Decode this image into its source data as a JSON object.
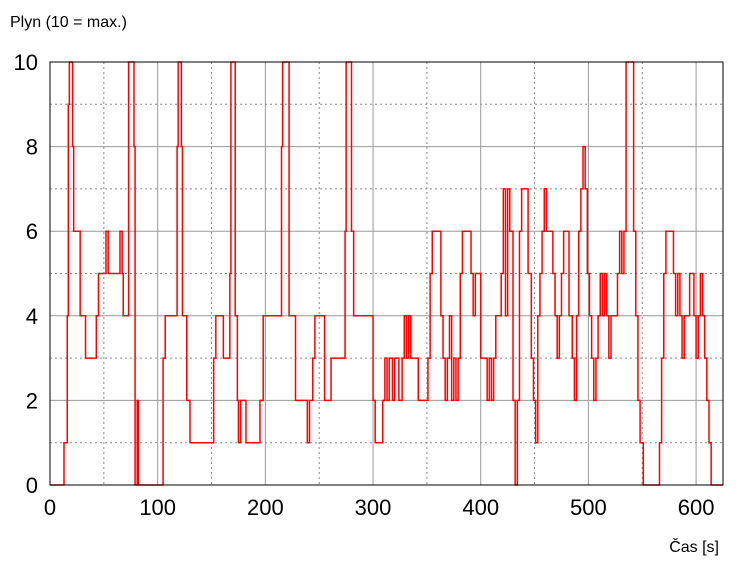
{
  "chart_data": {
    "type": "line",
    "title": "",
    "ylabel": "Plyn (10 = max.)",
    "xlabel": "Čas [s]",
    "xlim": [
      0,
      625
    ],
    "ylim": [
      0,
      10
    ],
    "x_ticks": [
      0,
      100,
      200,
      300,
      400,
      500,
      600
    ],
    "x_minor_grid": [
      50,
      150,
      250,
      350,
      450,
      550
    ],
    "y_ticks": [
      0,
      2,
      4,
      6,
      8,
      10
    ],
    "y_minor_grid": [
      1,
      3,
      5,
      7,
      9
    ],
    "grid": true,
    "line_color": "#ff0000",
    "series": [
      {
        "name": "",
        "step": true,
        "points": [
          [
            0,
            0
          ],
          [
            12,
            0
          ],
          [
            13,
            1
          ],
          [
            15,
            1
          ],
          [
            16,
            4
          ],
          [
            17,
            9
          ],
          [
            18,
            10
          ],
          [
            20,
            10
          ],
          [
            21,
            8
          ],
          [
            22,
            6
          ],
          [
            26,
            6
          ],
          [
            28,
            4
          ],
          [
            31,
            4
          ],
          [
            33,
            3
          ],
          [
            41,
            3
          ],
          [
            43,
            4
          ],
          [
            45,
            5
          ],
          [
            51,
            5
          ],
          [
            52,
            6
          ],
          [
            54,
            5
          ],
          [
            64,
            5
          ],
          [
            65,
            6
          ],
          [
            67,
            5
          ],
          [
            68,
            4
          ],
          [
            71,
            4
          ],
          [
            73,
            10
          ],
          [
            77,
            10
          ],
          [
            78,
            8
          ],
          [
            79,
            0
          ],
          [
            81,
            2
          ],
          [
            82,
            0
          ],
          [
            84,
            0
          ],
          [
            104,
            0
          ],
          [
            105,
            3
          ],
          [
            107,
            4
          ],
          [
            117,
            4
          ],
          [
            118,
            8
          ],
          [
            119,
            10
          ],
          [
            121,
            10
          ],
          [
            122,
            8
          ],
          [
            123,
            4
          ],
          [
            126,
            4
          ],
          [
            127,
            2
          ],
          [
            130,
            1
          ],
          [
            150,
            1
          ],
          [
            152,
            3
          ],
          [
            154,
            4
          ],
          [
            159,
            4
          ],
          [
            161,
            3
          ],
          [
            165,
            3
          ],
          [
            167,
            5
          ],
          [
            168,
            10
          ],
          [
            171,
            10
          ],
          [
            172,
            4
          ],
          [
            174,
            2
          ],
          [
            175,
            1
          ],
          [
            177,
            2
          ],
          [
            180,
            2
          ],
          [
            182,
            1
          ],
          [
            193,
            1
          ],
          [
            195,
            2
          ],
          [
            198,
            4
          ],
          [
            213,
            4
          ],
          [
            215,
            8
          ],
          [
            216,
            10
          ],
          [
            220,
            10
          ],
          [
            222,
            4
          ],
          [
            226,
            4
          ],
          [
            228,
            2
          ],
          [
            237,
            2
          ],
          [
            239,
            1
          ],
          [
            241,
            2
          ],
          [
            244,
            3
          ],
          [
            246,
            4
          ],
          [
            253,
            4
          ],
          [
            255,
            2
          ],
          [
            259,
            2
          ],
          [
            261,
            3
          ],
          [
            273,
            3
          ],
          [
            274,
            6
          ],
          [
            275,
            10
          ],
          [
            278,
            10
          ],
          [
            280,
            6
          ],
          [
            282,
            4
          ],
          [
            299,
            4
          ],
          [
            300,
            2
          ],
          [
            302,
            1
          ],
          [
            307,
            1
          ],
          [
            309,
            2
          ],
          [
            311,
            3
          ],
          [
            313,
            2
          ],
          [
            315,
            3
          ],
          [
            318,
            2
          ],
          [
            320,
            3
          ],
          [
            324,
            2
          ],
          [
            327,
            3
          ],
          [
            329,
            4
          ],
          [
            331,
            3
          ],
          [
            333,
            4
          ],
          [
            335,
            3
          ],
          [
            339,
            3
          ],
          [
            342,
            2
          ],
          [
            349,
            2
          ],
          [
            351,
            3
          ],
          [
            353,
            5
          ],
          [
            355,
            6
          ],
          [
            361,
            6
          ],
          [
            363,
            4
          ],
          [
            365,
            3
          ],
          [
            367,
            2
          ],
          [
            369,
            3
          ],
          [
            371,
            4
          ],
          [
            373,
            2
          ],
          [
            375,
            3
          ],
          [
            377,
            2
          ],
          [
            379,
            3
          ],
          [
            381,
            5
          ],
          [
            383,
            6
          ],
          [
            389,
            6
          ],
          [
            391,
            5
          ],
          [
            393,
            4
          ],
          [
            395,
            5
          ],
          [
            398,
            5
          ],
          [
            400,
            3
          ],
          [
            404,
            3
          ],
          [
            406,
            2
          ],
          [
            408,
            3
          ],
          [
            410,
            2
          ],
          [
            412,
            3
          ],
          [
            414,
            4
          ],
          [
            417,
            4
          ],
          [
            419,
            5
          ],
          [
            421,
            7
          ],
          [
            423,
            4
          ],
          [
            425,
            7
          ],
          [
            427,
            6
          ],
          [
            430,
            2
          ],
          [
            432,
            0
          ],
          [
            434,
            2
          ],
          [
            436,
            6
          ],
          [
            438,
            7
          ],
          [
            442,
            7
          ],
          [
            444,
            5
          ],
          [
            447,
            3
          ],
          [
            449,
            2
          ],
          [
            451,
            1
          ],
          [
            453,
            4
          ],
          [
            455,
            5
          ],
          [
            457,
            6
          ],
          [
            459,
            7
          ],
          [
            461,
            6
          ],
          [
            465,
            6
          ],
          [
            467,
            5
          ],
          [
            469,
            4
          ],
          [
            471,
            3
          ],
          [
            473,
            4
          ],
          [
            475,
            5
          ],
          [
            477,
            6
          ],
          [
            480,
            6
          ],
          [
            482,
            4
          ],
          [
            485,
            3
          ],
          [
            487,
            2
          ],
          [
            489,
            4
          ],
          [
            491,
            6
          ],
          [
            493,
            7
          ],
          [
            495,
            8
          ],
          [
            497,
            7
          ],
          [
            499,
            5
          ],
          [
            501,
            4
          ],
          [
            503,
            3
          ],
          [
            505,
            2
          ],
          [
            507,
            3
          ],
          [
            509,
            4
          ],
          [
            511,
            5
          ],
          [
            513,
            4
          ],
          [
            515,
            5
          ],
          [
            517,
            4
          ],
          [
            519,
            3
          ],
          [
            521,
            4
          ],
          [
            525,
            4
          ],
          [
            527,
            5
          ],
          [
            529,
            6
          ],
          [
            531,
            5
          ],
          [
            533,
            6
          ],
          [
            535,
            10
          ],
          [
            540,
            10
          ],
          [
            542,
            6
          ],
          [
            544,
            4
          ],
          [
            546,
            2
          ],
          [
            548,
            1
          ],
          [
            551,
            0
          ],
          [
            564,
            0
          ],
          [
            566,
            1
          ],
          [
            568,
            3
          ],
          [
            570,
            5
          ],
          [
            572,
            6
          ],
          [
            577,
            6
          ],
          [
            579,
            5
          ],
          [
            581,
            4
          ],
          [
            583,
            5
          ],
          [
            585,
            4
          ],
          [
            587,
            3
          ],
          [
            589,
            4
          ],
          [
            592,
            4
          ],
          [
            594,
            5
          ],
          [
            597,
            5
          ],
          [
            598,
            4
          ],
          [
            600,
            3
          ],
          [
            602,
            4
          ],
          [
            604,
            5
          ],
          [
            606,
            4
          ],
          [
            608,
            3
          ],
          [
            610,
            2
          ],
          [
            612,
            1
          ],
          [
            614,
            0
          ],
          [
            625,
            0
          ]
        ]
      }
    ]
  }
}
